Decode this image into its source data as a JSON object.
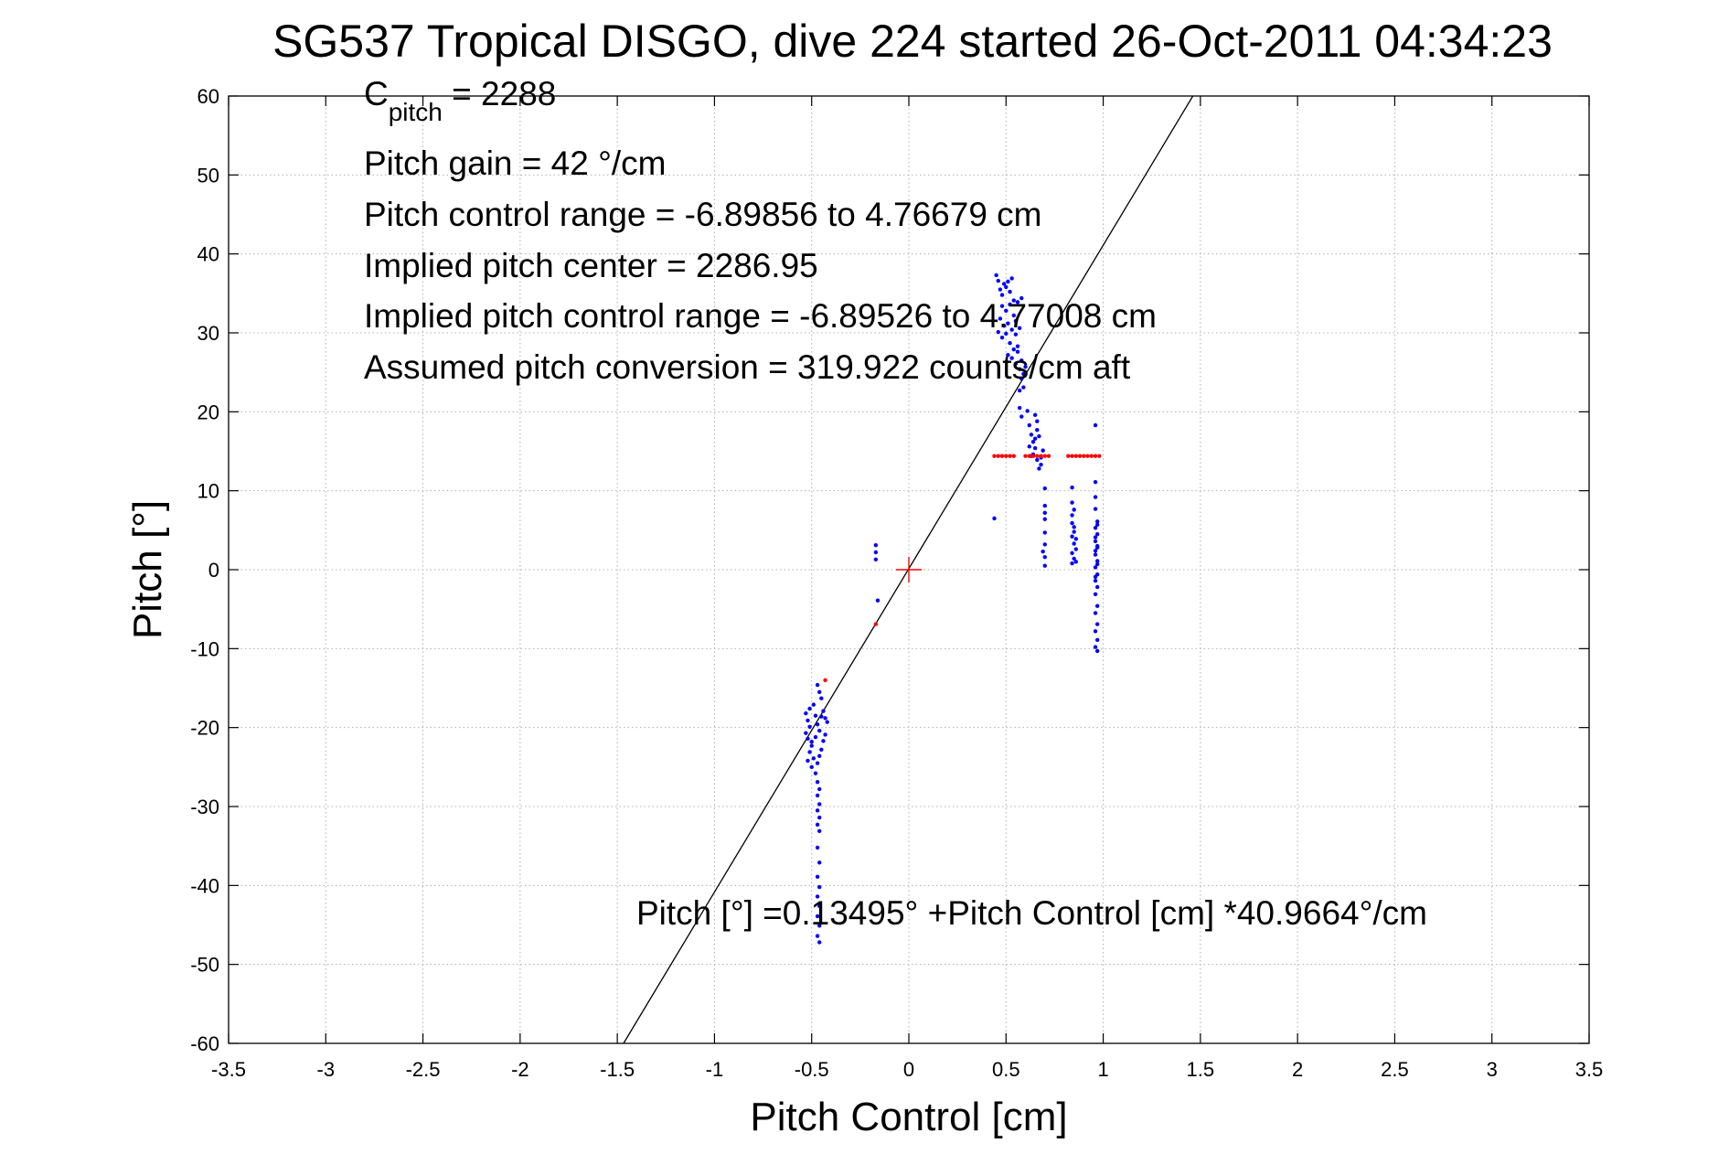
{
  "chart_data": {
    "type": "scatter",
    "title": "SG537 Tropical DISGO, dive 224 started 26-Oct-2011 04:34:23",
    "xlabel": "Pitch Control [cm]",
    "ylabel": "Pitch [°]",
    "xlim": [
      -3.5,
      3.5
    ],
    "ylim": [
      -60,
      60
    ],
    "x_ticks": [
      -3.5,
      -3,
      -2.5,
      -2,
      -1.5,
      -1,
      -0.5,
      0,
      0.5,
      1,
      1.5,
      2,
      2.5,
      3,
      3.5
    ],
    "x_tick_labels": [
      "-3.5",
      "-3",
      "-2.5",
      "-2",
      "-1.5",
      "-1",
      "-0.5",
      "0",
      "0.5",
      "1",
      "1.5",
      "2",
      "2.5",
      "3",
      "3.5"
    ],
    "y_ticks": [
      -60,
      -50,
      -40,
      -30,
      -20,
      -10,
      0,
      10,
      20,
      30,
      40,
      50,
      60
    ],
    "y_tick_labels": [
      "-60",
      "-50",
      "-40",
      "-30",
      "-20",
      "-10",
      "0",
      "10",
      "20",
      "30",
      "40",
      "50",
      "60"
    ],
    "grid": true,
    "annotations": {
      "c_pitch_main": "C",
      "c_pitch_sub": "pitch",
      "c_pitch_value": " = 2288",
      "pitch_gain": "Pitch gain = 42 °/cm",
      "control_range": "Pitch control range = -6.89856 to 4.76679 cm",
      "implied_center": "Implied pitch center = 2286.95",
      "implied_range": "Implied pitch control range = -6.89526 to 4.77008 cm",
      "conversion": "Assumed pitch conversion = 319.922 counts/cm aft",
      "fit_equation": "Pitch [°] =0.13495° +Pitch Control [cm] *40.9664°/cm"
    },
    "fit_line": {
      "intercept": 0.13495,
      "slope": 40.9664,
      "color": "#000000"
    },
    "center_marker": {
      "x": 0,
      "y": 0,
      "color": "#ff0000"
    },
    "series": [
      {
        "color": "#0000ff",
        "points": [
          [
            0.45,
            37.3
          ],
          [
            0.46,
            36.6
          ],
          [
            0.47,
            35.5
          ],
          [
            0.48,
            34.8
          ],
          [
            0.49,
            36.2
          ],
          [
            0.5,
            35.8
          ],
          [
            0.51,
            36.5
          ],
          [
            0.52,
            35.2
          ],
          [
            0.53,
            36.9
          ],
          [
            0.54,
            34.1
          ],
          [
            0.48,
            33.4
          ],
          [
            0.5,
            32.8
          ],
          [
            0.52,
            33.6
          ],
          [
            0.54,
            32.2
          ],
          [
            0.56,
            33.9
          ],
          [
            0.58,
            34.4
          ],
          [
            0.55,
            31.5
          ],
          [
            0.47,
            31.8
          ],
          [
            0.49,
            30.9
          ],
          [
            0.51,
            31.2
          ],
          [
            0.53,
            30.4
          ],
          [
            0.55,
            29.8
          ],
          [
            0.57,
            30.6
          ],
          [
            0.46,
            30.1
          ],
          [
            0.48,
            29.4
          ],
          [
            0.5,
            29.9
          ],
          [
            0.52,
            28.7
          ],
          [
            0.54,
            27.9
          ],
          [
            0.56,
            28.3
          ],
          [
            0.53,
            26.8
          ],
          [
            0.55,
            26.1
          ],
          [
            0.57,
            25.4
          ],
          [
            0.58,
            24.2
          ],
          [
            0.59,
            23.1
          ],
          [
            0.6,
            25.7
          ],
          [
            0.51,
            27.2
          ],
          [
            0.56,
            27.6
          ],
          [
            0.58,
            26.5
          ],
          [
            0.57,
            22.7
          ],
          [
            0.59,
            24.8
          ],
          [
            0.57,
            20.5
          ],
          [
            0.58,
            19.4
          ],
          [
            0.61,
            20.1
          ],
          [
            0.62,
            18.3
          ],
          [
            0.63,
            17.1
          ],
          [
            0.64,
            16.2
          ],
          [
            0.65,
            19.6
          ],
          [
            0.66,
            18.8
          ],
          [
            0.65,
            15.4
          ],
          [
            0.64,
            14.6
          ],
          [
            0.66,
            13.9
          ],
          [
            0.67,
            12.8
          ],
          [
            0.68,
            14.2
          ],
          [
            0.69,
            15.1
          ],
          [
            0.62,
            15.6
          ],
          [
            0.63,
            14.4
          ],
          [
            0.67,
            16.9
          ],
          [
            0.66,
            17.7
          ],
          [
            0.68,
            13.3
          ],
          [
            0.65,
            16.6
          ],
          [
            0.7,
            10.3
          ],
          [
            0.7,
            8.1
          ],
          [
            0.7,
            6.4
          ],
          [
            0.7,
            4.7
          ],
          [
            0.7,
            3.2
          ],
          [
            0.7,
            1.6
          ],
          [
            0.7,
            0.5
          ],
          [
            0.69,
            2.3
          ],
          [
            0.7,
            7.2
          ],
          [
            0.84,
            10.4
          ],
          [
            0.84,
            8.5
          ],
          [
            0.84,
            6.9
          ],
          [
            0.85,
            5.4
          ],
          [
            0.84,
            4.2
          ],
          [
            0.85,
            3.3
          ],
          [
            0.84,
            2.1
          ],
          [
            0.85,
            1.4
          ],
          [
            0.84,
            0.8
          ],
          [
            0.86,
            2.6
          ],
          [
            0.85,
            4.8
          ],
          [
            0.86,
            3.9
          ],
          [
            0.84,
            5.9
          ],
          [
            0.85,
            7.6
          ],
          [
            0.86,
            1.0
          ],
          [
            0.96,
            18.3
          ],
          [
            0.96,
            11.1
          ],
          [
            0.96,
            9.2
          ],
          [
            0.96,
            7.7
          ],
          [
            0.97,
            6.1
          ],
          [
            0.96,
            5.3
          ],
          [
            0.97,
            4.5
          ],
          [
            0.96,
            3.6
          ],
          [
            0.97,
            2.8
          ],
          [
            0.96,
            1.9
          ],
          [
            0.97,
            1.1
          ],
          [
            0.96,
            0.3
          ],
          [
            0.97,
            -0.6
          ],
          [
            0.96,
            -1.4
          ],
          [
            0.97,
            -2.2
          ],
          [
            0.96,
            -3.1
          ],
          [
            0.97,
            -4.6
          ],
          [
            0.96,
            -5.5
          ],
          [
            0.97,
            -6.9
          ],
          [
            0.96,
            -7.8
          ],
          [
            0.97,
            -8.9
          ],
          [
            0.96,
            -9.8
          ],
          [
            0.97,
            -10.3
          ],
          [
            0.97,
            5.7
          ],
          [
            0.96,
            4.1
          ],
          [
            0.97,
            3.0
          ],
          [
            0.96,
            2.4
          ],
          [
            0.97,
            0.7
          ],
          [
            0.96,
            -0.9
          ],
          [
            0.44,
            6.5
          ],
          [
            -0.17,
            3.1
          ],
          [
            -0.17,
            2.2
          ],
          [
            -0.17,
            1.3
          ],
          [
            -0.16,
            -3.9
          ],
          [
            -0.47,
            -14.6
          ],
          [
            -0.46,
            -15.5
          ],
          [
            -0.45,
            -16.3
          ],
          [
            -0.49,
            -17.1
          ],
          [
            -0.51,
            -17.6
          ],
          [
            -0.53,
            -18.2
          ],
          [
            -0.52,
            -19.1
          ],
          [
            -0.51,
            -19.9
          ],
          [
            -0.53,
            -20.7
          ],
          [
            -0.52,
            -21.4
          ],
          [
            -0.5,
            -22.3
          ],
          [
            -0.51,
            -23.1
          ],
          [
            -0.52,
            -24.2
          ],
          [
            -0.5,
            -25.0
          ],
          [
            -0.48,
            -18.5
          ],
          [
            -0.47,
            -19.6
          ],
          [
            -0.46,
            -20.4
          ],
          [
            -0.44,
            -17.9
          ],
          [
            -0.43,
            -18.8
          ],
          [
            -0.42,
            -19.3
          ],
          [
            -0.43,
            -20.9
          ],
          [
            -0.44,
            -21.7
          ],
          [
            -0.45,
            -22.8
          ],
          [
            -0.46,
            -23.6
          ],
          [
            -0.47,
            -24.5
          ],
          [
            -0.48,
            -25.8
          ],
          [
            -0.47,
            -26.9
          ],
          [
            -0.46,
            -27.8
          ],
          [
            -0.47,
            -28.6
          ],
          [
            -0.46,
            -29.7
          ],
          [
            -0.47,
            -30.5
          ],
          [
            -0.46,
            -31.4
          ],
          [
            -0.47,
            -32.3
          ],
          [
            -0.46,
            -33.1
          ],
          [
            -0.47,
            -35.2
          ],
          [
            -0.46,
            -37.1
          ],
          [
            -0.47,
            -38.9
          ],
          [
            -0.46,
            -40.2
          ],
          [
            -0.47,
            -41.4
          ],
          [
            -0.46,
            -42.6
          ],
          [
            -0.47,
            -43.9
          ],
          [
            -0.46,
            -45.1
          ],
          [
            -0.47,
            -46.4
          ],
          [
            -0.46,
            -47.2
          ],
          [
            -0.5,
            -21.8
          ],
          [
            -0.49,
            -23.9
          ],
          [
            -0.48,
            -21.2
          ],
          [
            -0.45,
            -18.6
          ]
        ]
      },
      {
        "color": "#ff0000",
        "points": [
          [
            0.44,
            14.4
          ],
          [
            0.46,
            14.4
          ],
          [
            0.48,
            14.4
          ],
          [
            0.5,
            14.4
          ],
          [
            0.52,
            14.4
          ],
          [
            0.54,
            14.4
          ],
          [
            0.6,
            14.4
          ],
          [
            0.62,
            14.4
          ],
          [
            0.64,
            14.4
          ],
          [
            0.66,
            14.4
          ],
          [
            0.68,
            14.4
          ],
          [
            0.7,
            14.4
          ],
          [
            0.72,
            14.4
          ],
          [
            0.82,
            14.4
          ],
          [
            0.84,
            14.4
          ],
          [
            0.86,
            14.4
          ],
          [
            0.88,
            14.4
          ],
          [
            0.9,
            14.4
          ],
          [
            0.92,
            14.4
          ],
          [
            0.94,
            14.4
          ],
          [
            0.96,
            14.4
          ],
          [
            0.98,
            14.4
          ],
          [
            -0.17,
            -6.9
          ],
          [
            -0.43,
            -14.0
          ]
        ]
      }
    ]
  }
}
